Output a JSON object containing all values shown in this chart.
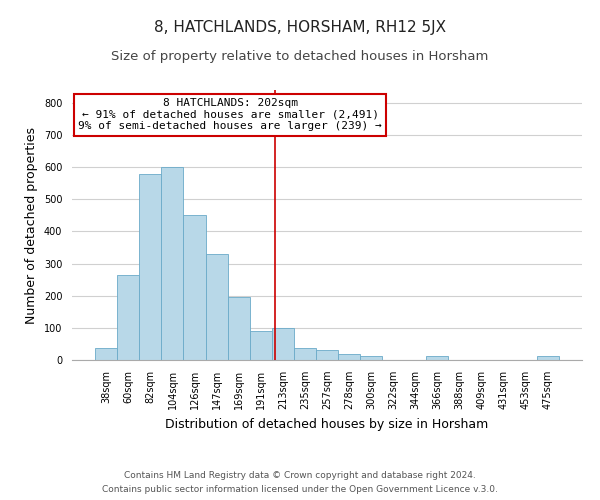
{
  "title": "8, HATCHLANDS, HORSHAM, RH12 5JX",
  "subtitle": "Size of property relative to detached houses in Horsham",
  "xlabel": "Distribution of detached houses by size in Horsham",
  "ylabel": "Number of detached properties",
  "bar_labels": [
    "38sqm",
    "60sqm",
    "82sqm",
    "104sqm",
    "126sqm",
    "147sqm",
    "169sqm",
    "191sqm",
    "213sqm",
    "235sqm",
    "257sqm",
    "278sqm",
    "300sqm",
    "322sqm",
    "344sqm",
    "366sqm",
    "388sqm",
    "409sqm",
    "431sqm",
    "453sqm",
    "475sqm"
  ],
  "bar_values": [
    38,
    265,
    580,
    600,
    450,
    330,
    195,
    90,
    100,
    37,
    30,
    20,
    12,
    0,
    0,
    12,
    0,
    0,
    0,
    0,
    12
  ],
  "bar_color": "#b8d8e8",
  "bar_edge_color": "#6aaac8",
  "ylim": [
    0,
    840
  ],
  "yticks": [
    0,
    100,
    200,
    300,
    400,
    500,
    600,
    700,
    800
  ],
  "vline_x": 7.636,
  "vline_color": "#cc0000",
  "annotation_text_line1": "8 HATCHLANDS: 202sqm",
  "annotation_text_line2": "← 91% of detached houses are smaller (2,491)",
  "annotation_text_line3": "9% of semi-detached houses are larger (239) →",
  "footer_line1": "Contains HM Land Registry data © Crown copyright and database right 2024.",
  "footer_line2": "Contains public sector information licensed under the Open Government Licence v.3.0.",
  "background_color": "#ffffff",
  "grid_color": "#d0d0d0",
  "title_fontsize": 11,
  "subtitle_fontsize": 9.5,
  "axis_label_fontsize": 9,
  "tick_fontsize": 7,
  "footer_fontsize": 6.5,
  "annotation_fontsize": 8
}
